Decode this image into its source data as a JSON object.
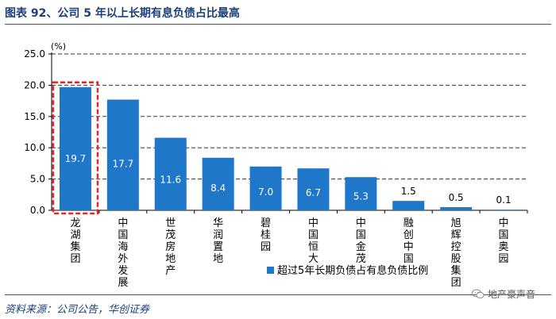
{
  "header": {
    "title": "图表 92、公司 5 年以上长期有息负债占比最高"
  },
  "footer": {
    "source": "资料来源：公司公告，华创证券"
  },
  "watermark": {
    "text": "地产豪声音",
    "icon": "wechat-icon"
  },
  "colors": {
    "bar": "#1f77c9",
    "highlight": "#e8232a",
    "title": "#1c3f7a"
  },
  "chart_data": {
    "type": "bar",
    "unit_label": "(%)",
    "categories": [
      "龙湖集团",
      "中国海外发展",
      "世茂房地产",
      "华润置地",
      "碧桂园",
      "中国恒大",
      "中国金茂",
      "融创中国",
      "旭辉控股集团",
      "中国奥园"
    ],
    "series": [
      {
        "name": "超过5年长期负债占有息负债比例",
        "values": [
          19.7,
          17.7,
          11.6,
          8.4,
          7.0,
          6.7,
          5.3,
          1.5,
          0.5,
          0.1
        ]
      }
    ],
    "value_labels": [
      "19.7",
      "17.7",
      "11.6",
      "8.4",
      "7.0",
      "6.7",
      "5.3",
      "1.5",
      "0.5",
      "0.1"
    ],
    "ylim": [
      0,
      25
    ],
    "yticks": [
      "0.0",
      "5.0",
      "10.0",
      "15.0",
      "20.0",
      "25.0"
    ],
    "grid": true,
    "highlighted_category": "龙湖集团",
    "legend_position": "bottom-right"
  }
}
